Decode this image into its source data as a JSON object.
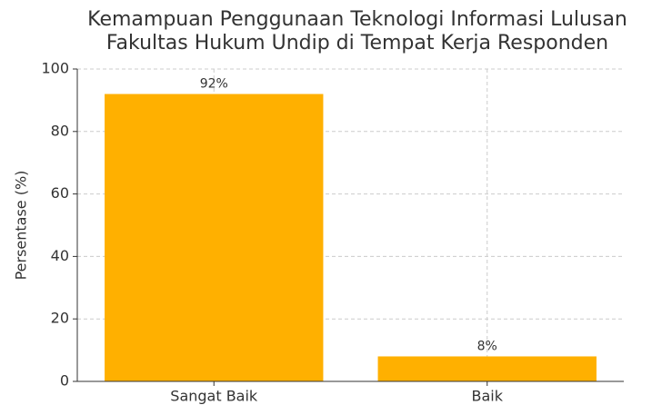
{
  "chart_data": {
    "type": "bar",
    "title": [
      "Kemampuan Penggunaan Teknologi Informasi Lulusan",
      "Fakultas Hukum Undip di Tempat Kerja Responden"
    ],
    "ylabel": "Persentase (%)",
    "categories": [
      "Sangat Baik",
      "Baik"
    ],
    "values": [
      92,
      8
    ],
    "value_labels": [
      "92%",
      "8%"
    ],
    "color": "#ffb000",
    "ylim": [
      0,
      100
    ],
    "yticks": [
      0,
      20,
      40,
      60,
      80,
      100
    ],
    "grid": true
  }
}
